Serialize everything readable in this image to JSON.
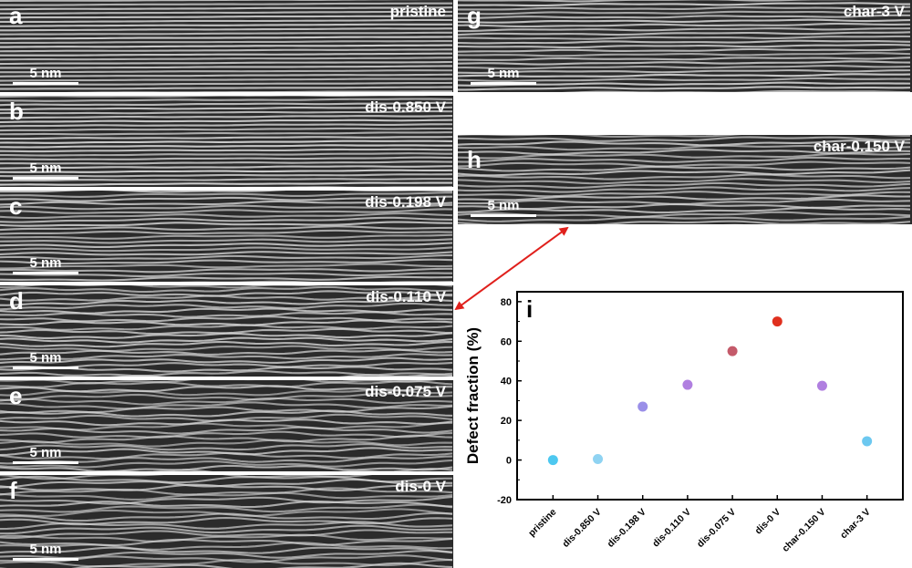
{
  "panels": [
    {
      "label": "a",
      "condition": "pristine",
      "scale": "5 nm"
    },
    {
      "label": "b",
      "condition": "dis-0.850 V",
      "scale": "5 nm"
    },
    {
      "label": "c",
      "condition": "dis-0.198 V",
      "scale": "5 nm"
    },
    {
      "label": "d",
      "condition": "dis-0.110 V",
      "scale": "5 nm"
    },
    {
      "label": "e",
      "condition": "dis-0.075 V",
      "scale": "5 nm"
    },
    {
      "label": "f",
      "condition": "dis-0 V",
      "scale": "5 nm"
    },
    {
      "label": "g",
      "condition": "char-3 V",
      "scale": "5 nm"
    },
    {
      "label": "h",
      "condition": "char-0.150 V",
      "scale": "5 nm"
    }
  ],
  "chart_data": {
    "type": "scatter",
    "panel_label": "i",
    "ylabel": "Defect fraction (%)",
    "ylim": [
      -20,
      85
    ],
    "yticks": [
      "-20",
      "0",
      "20",
      "40",
      "60",
      "80"
    ],
    "categories": [
      "pristine",
      "dis-0.850 V",
      "dis-0.198 V",
      "dis-0.110 V",
      "dis-0.075 V",
      "dis-0 V",
      "char-0.150 V",
      "char-3 V"
    ],
    "values": [
      0,
      0.5,
      27,
      38,
      55,
      70,
      37.5,
      9.5
    ],
    "colors": [
      "#4dc8f0",
      "#8fd3f2",
      "#9a8fe8",
      "#b07fe0",
      "#c45a6a",
      "#e0301e",
      "#b07fe0",
      "#6cc8f0"
    ],
    "grid": false
  }
}
